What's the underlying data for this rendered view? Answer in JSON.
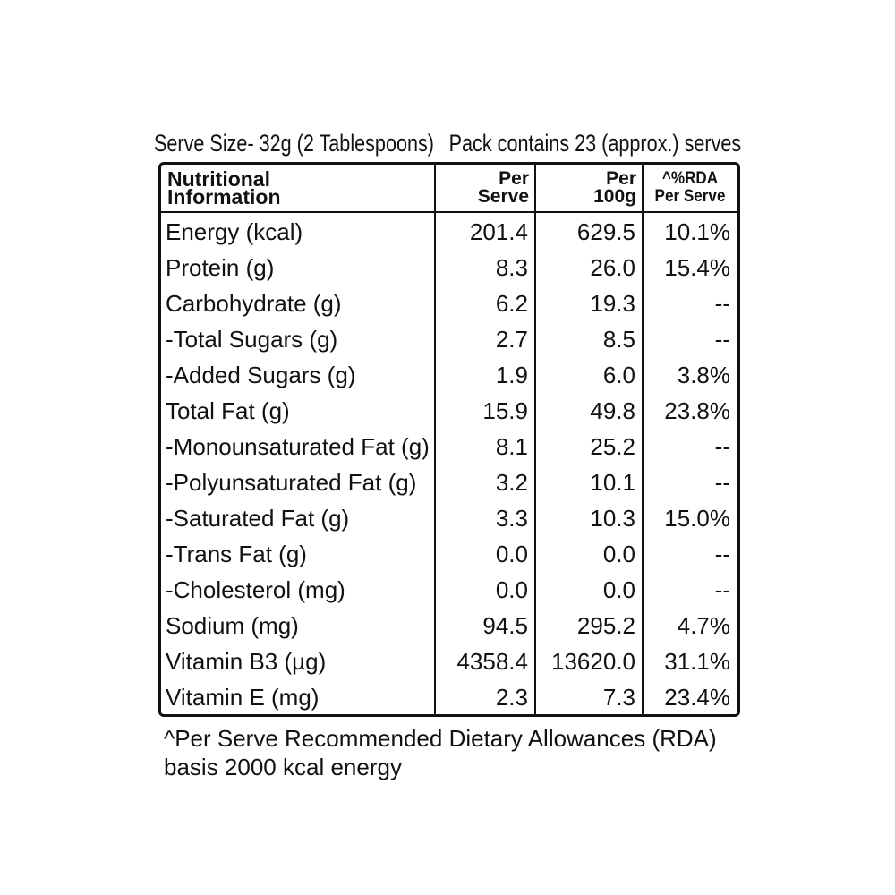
{
  "header": {
    "serve_size": "Serve Size- 32g (2 Tablespoons)",
    "pack": "Pack contains 23 (approx.) serves"
  },
  "table": {
    "columns": [
      [
        "Nutritional",
        "Information"
      ],
      [
        "Per",
        "Serve"
      ],
      [
        "Per",
        "100g"
      ],
      [
        "^%RDA",
        "Per Serve"
      ]
    ],
    "rows": [
      [
        "Energy (kcal)",
        "201.4",
        "629.5",
        "10.1%"
      ],
      [
        "Protein (g)",
        "8.3",
        "26.0",
        "15.4%"
      ],
      [
        "Carbohydrate (g)",
        "6.2",
        "19.3",
        "--"
      ],
      [
        "-Total Sugars (g)",
        "2.7",
        "8.5",
        "--"
      ],
      [
        "-Added Sugars (g)",
        "1.9",
        "6.0",
        "3.8%"
      ],
      [
        "Total Fat (g)",
        "15.9",
        "49.8",
        "23.8%"
      ],
      [
        "-Monounsaturated Fat (g)",
        "8.1",
        "25.2",
        "--"
      ],
      [
        "-Polyunsaturated Fat (g)",
        "3.2",
        "10.1",
        "--"
      ],
      [
        "-Saturated Fat (g)",
        "3.3",
        "10.3",
        "15.0%"
      ],
      [
        "-Trans Fat (g)",
        "0.0",
        "0.0",
        "--"
      ],
      [
        "-Cholesterol (mg)",
        "0.0",
        "0.0",
        "--"
      ],
      [
        "Sodium (mg)",
        "94.5",
        "295.2",
        "4.7%"
      ],
      [
        "Vitamin B3 (µg)",
        "4358.4",
        "13620.0",
        "31.1%"
      ],
      [
        "Vitamin E (mg)",
        "2.3",
        "7.3",
        "23.4%"
      ]
    ]
  },
  "footer": {
    "lines": [
      "^Per Serve Recommended Dietary Allowances (RDA)",
      "basis 2000 kcal energy"
    ]
  }
}
